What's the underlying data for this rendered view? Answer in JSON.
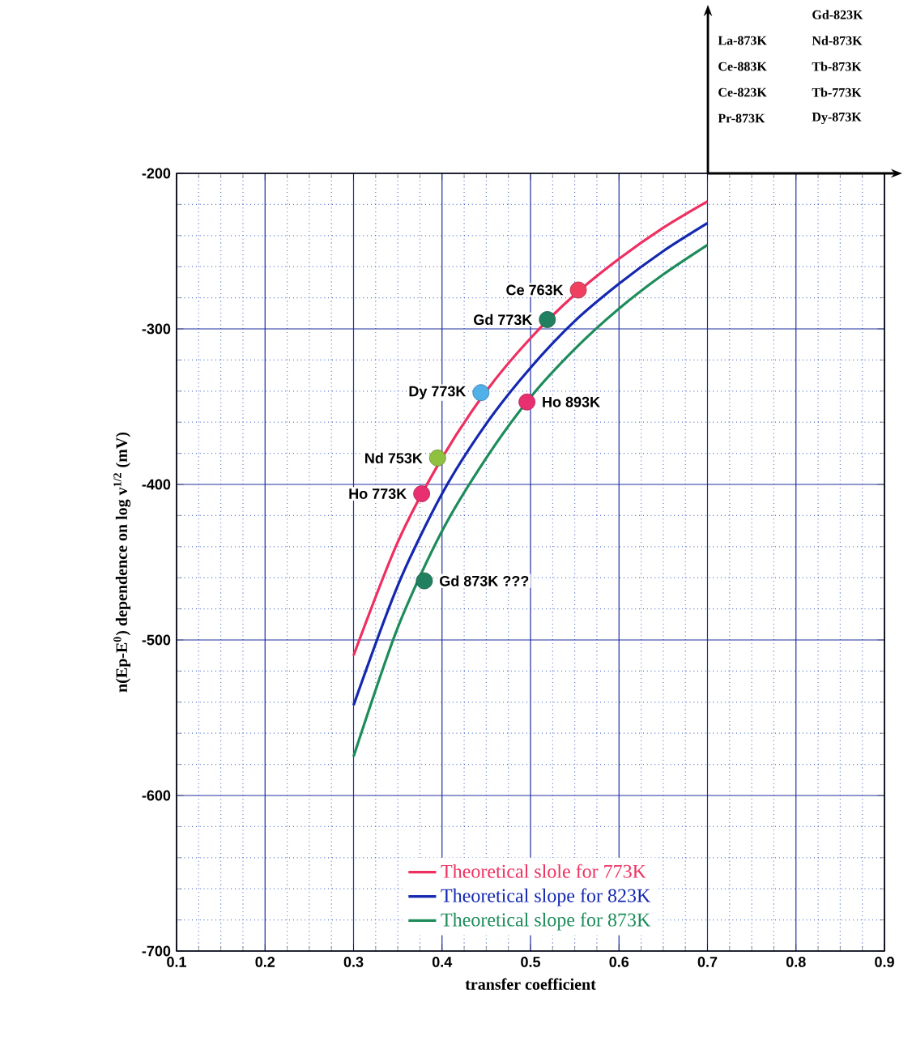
{
  "chart_data": {
    "type": "line",
    "xlabel": "transfer coefficient",
    "ylabel": "n(Ep-E$^{0}$) dependence on log v$^{1/2}$  (mV)",
    "xlim": [
      0.1,
      0.9
    ],
    "ylim": [
      -700,
      -200
    ],
    "xticks": [
      0.1,
      {
        "value": 0.125,
        "label": null
      },
      {
        "value": 0.15,
        "label": null
      },
      {
        "value": 0.175,
        "label": null
      },
      0.2,
      {
        "value": 0.225,
        "label": null
      },
      {
        "value": 0.25,
        "label": null
      },
      {
        "value": 0.275,
        "label": null
      },
      0.3,
      {
        "value": 0.325,
        "label": null
      },
      {
        "value": 0.35,
        "label": null
      },
      {
        "value": 0.375,
        "label": null
      },
      0.4,
      {
        "value": 0.425,
        "label": null
      },
      {
        "value": 0.45,
        "label": null
      },
      {
        "value": 0.475,
        "label": null
      },
      0.5,
      {
        "value": 0.525,
        "label": null
      },
      {
        "value": 0.55,
        "label": null
      },
      {
        "value": 0.575,
        "label": null
      },
      0.6,
      {
        "value": 0.625,
        "label": null
      },
      {
        "value": 0.65,
        "label": null
      },
      {
        "value": 0.675,
        "label": null
      },
      0.7,
      {
        "value": 0.725,
        "label": null
      },
      {
        "value": 0.75,
        "label": null
      },
      {
        "value": 0.775,
        "label": null
      },
      0.8,
      {
        "value": 0.825,
        "label": null
      },
      {
        "value": 0.85,
        "label": null
      },
      {
        "value": 0.875,
        "label": null
      },
      0.9
    ],
    "yticks": [
      -700,
      {
        "value": -680,
        "label": null
      },
      {
        "value": -660,
        "label": null
      },
      {
        "value": -640,
        "label": null
      },
      {
        "value": -620,
        "label": null
      },
      -600,
      {
        "value": -580,
        "label": null
      },
      {
        "value": -560,
        "label": null
      },
      {
        "value": -540,
        "label": null
      },
      {
        "value": -520,
        "label": null
      },
      -500,
      {
        "value": -480,
        "label": null
      },
      {
        "value": -460,
        "label": null
      },
      {
        "value": -440,
        "label": null
      },
      {
        "value": -420,
        "label": null
      },
      -400,
      {
        "value": -380,
        "label": null
      },
      {
        "value": -360,
        "label": null
      },
      {
        "value": -340,
        "label": null
      },
      {
        "value": -320,
        "label": null
      },
      -300,
      {
        "value": -280,
        "label": null
      },
      {
        "value": -260,
        "label": null
      },
      {
        "value": -240,
        "label": null
      },
      {
        "value": -220,
        "label": null
      },
      -200
    ],
    "grid": true,
    "legend": "bottom",
    "series": [
      {
        "name": "Theoretical slole for 773K",
        "color": "#ee3060",
        "x": [
          0.3,
          0.35,
          0.4,
          0.45,
          0.5,
          0.55,
          0.6,
          0.65,
          0.7
        ],
        "values": [
          -510,
          -437,
          -383,
          -340,
          -306,
          -278,
          -255,
          -235,
          -218
        ]
      },
      {
        "name": "Theoretical slope for 823K",
        "color": "#1428b0",
        "x": [
          0.3,
          0.35,
          0.4,
          0.45,
          0.5,
          0.55,
          0.6,
          0.65,
          0.7
        ],
        "values": [
          -542,
          -465,
          -406,
          -361,
          -325,
          -295,
          -271,
          -250,
          -232
        ]
      },
      {
        "name": "Theoretical slope for 873K",
        "color": "#1e8c5a",
        "x": [
          0.3,
          0.35,
          0.4,
          0.45,
          0.5,
          0.55,
          0.6,
          0.65,
          0.7
        ],
        "values": [
          -575,
          -492,
          -430,
          -383,
          -344,
          -313,
          -287,
          -265,
          -246
        ]
      },
      {
        "type": "scatter",
        "marker": "circle",
        "x": [
          0.554,
          0.519,
          0.444,
          0.496,
          0.395,
          0.377,
          0.38
        ],
        "values": [
          -275,
          -294,
          -341,
          -347,
          -383,
          -406,
          -462
        ],
        "colors": [
          "#f04060",
          "#208060",
          "#50b0e8",
          "#e83070",
          "#90c040",
          "#e83070",
          "#208060"
        ]
      }
    ],
    "annotations": [
      {
        "text": "Ce 763K",
        "x": 0.554,
        "y": -275
      },
      {
        "text": "Gd 773K",
        "x": 0.519,
        "y": -294
      },
      {
        "text": "Dy 773K",
        "x": 0.444,
        "y": -341
      },
      {
        "text": "Ho 893K",
        "x": 0.496,
        "y": -347
      },
      {
        "text": "Nd 753K",
        "x": 0.395,
        "y": -383
      },
      {
        "text": "Ho 773K",
        "x": 0.377,
        "y": -406
      },
      {
        "text": "Gd 873K ???",
        "x": 0.38,
        "y": -462
      },
      "Gd-823K",
      "La-873K",
      "Nd-873K",
      "Ce-883K",
      "Tb-873K",
      "Ce-823K",
      "Tb-773K",
      "Pr-873K",
      "Dy-873K"
    ]
  }
}
